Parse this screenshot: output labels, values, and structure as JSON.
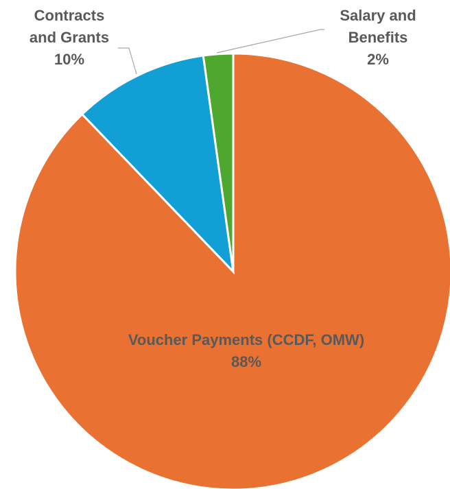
{
  "chart_data": {
    "type": "pie",
    "title": "",
    "slices": [
      {
        "key": "voucher",
        "label_lines": [
          "Voucher Payments (CCDF, OMW)"
        ],
        "percent_label": "88%",
        "value": 88,
        "color": "#E97132"
      },
      {
        "key": "contracts",
        "label_lines": [
          "Contracts",
          "and Grants"
        ],
        "percent_label": "10%",
        "value": 10,
        "color": "#119FD6"
      },
      {
        "key": "salary",
        "label_lines": [
          "Salary and",
          "Benefits"
        ],
        "percent_label": "2%",
        "value": 2.2,
        "color": "#4EA72E"
      }
    ],
    "start_angle_deg": 0,
    "direction": "clockwise",
    "legend": "none"
  }
}
